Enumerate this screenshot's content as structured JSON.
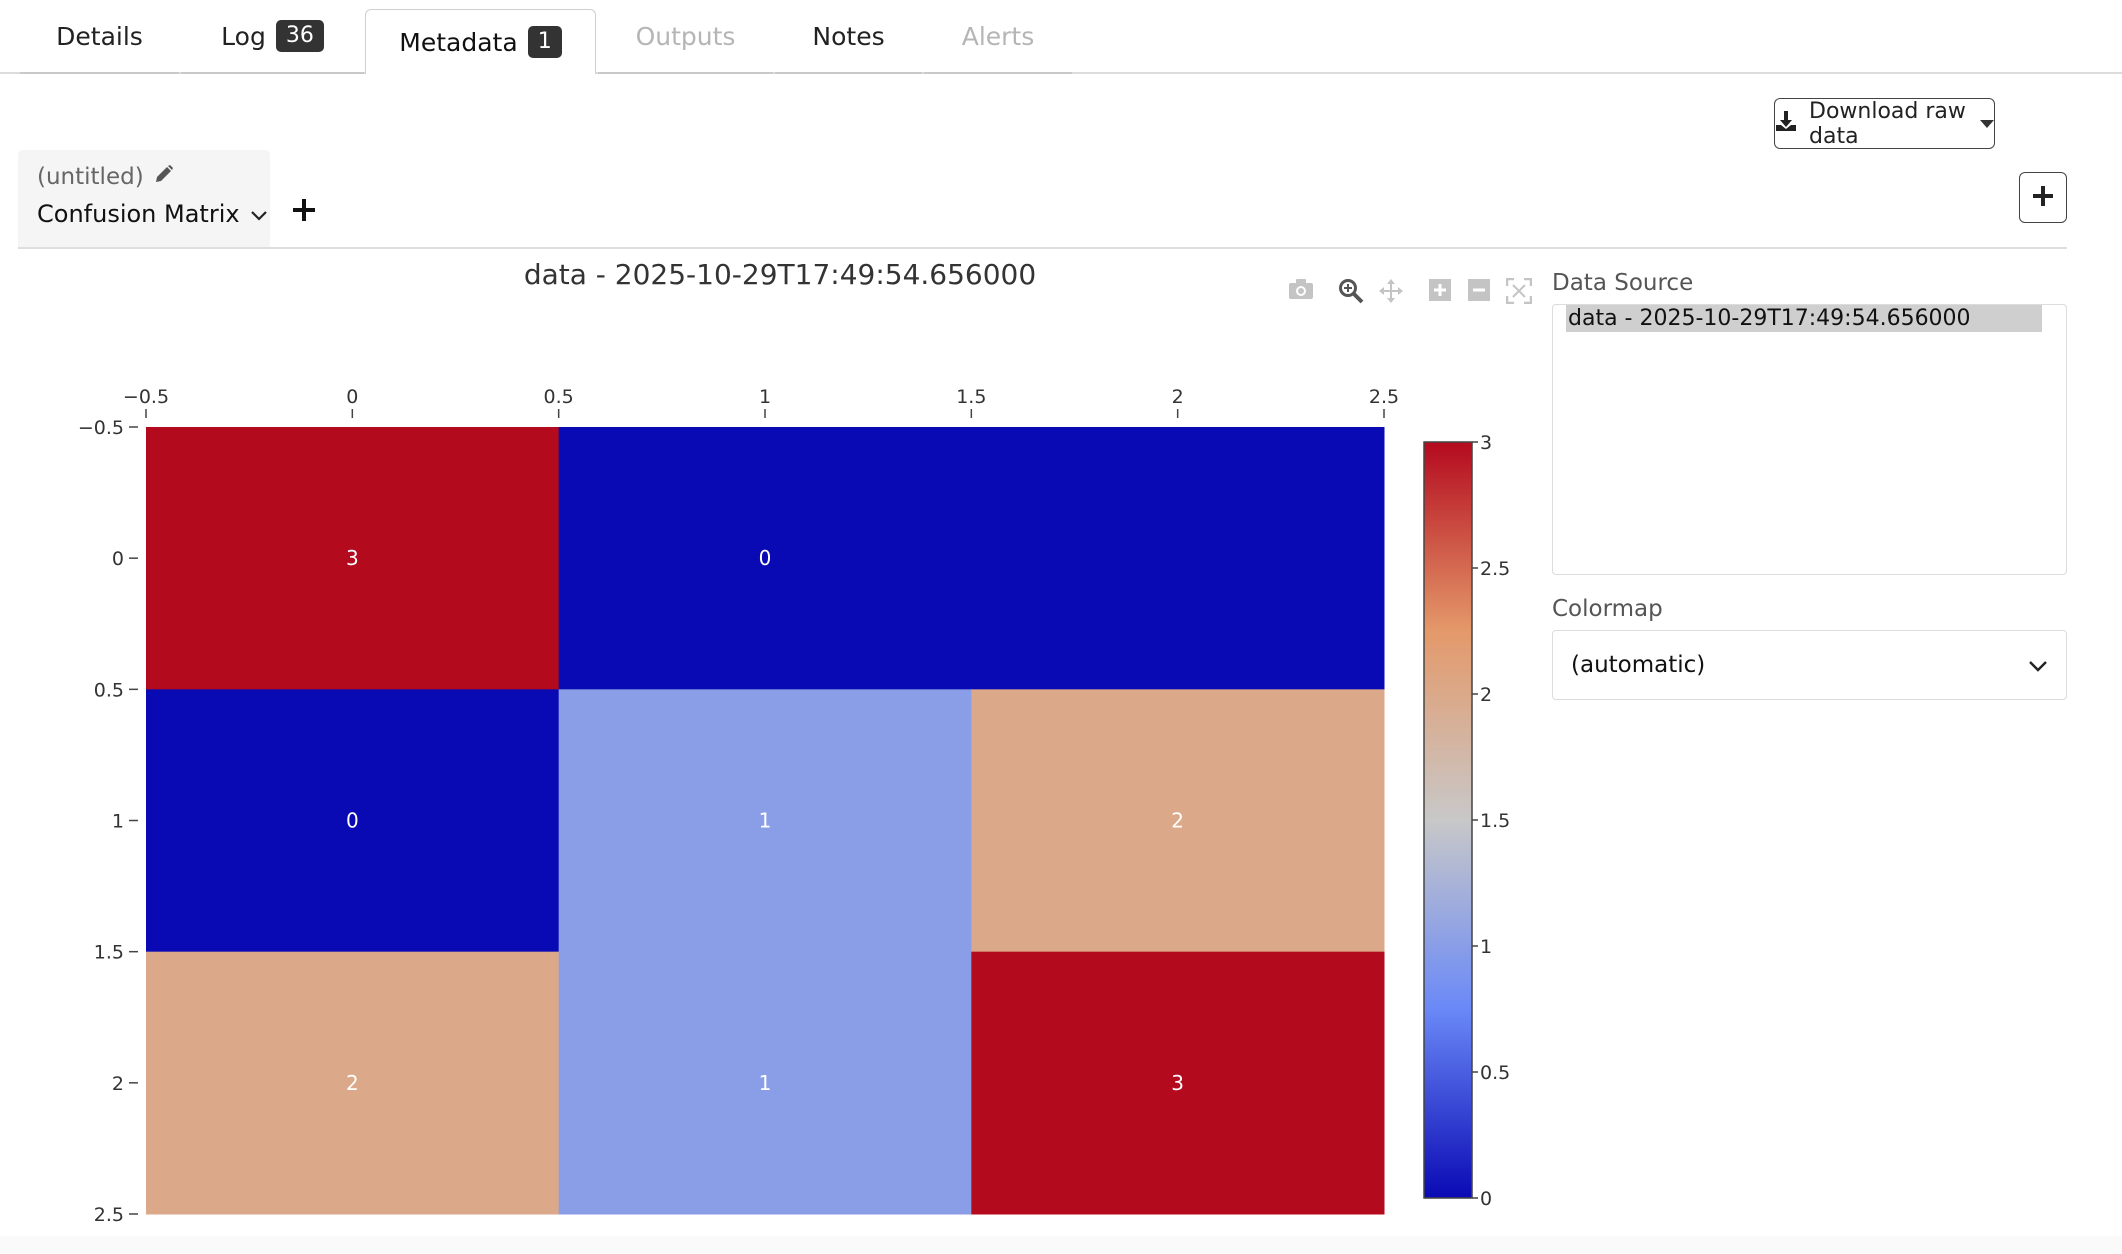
{
  "tabs": [
    {
      "label": "Details",
      "badge": null,
      "state": "normal"
    },
    {
      "label": "Log",
      "badge": "36",
      "state": "normal"
    },
    {
      "label": "Metadata",
      "badge": "1",
      "state": "active"
    },
    {
      "label": "Outputs",
      "badge": null,
      "state": "disabled"
    },
    {
      "label": "Notes",
      "badge": null,
      "state": "normal"
    },
    {
      "label": "Alerts",
      "badge": null,
      "state": "disabled"
    }
  ],
  "toolbar": {
    "download_label": "Download raw data",
    "download_icon": "download-icon",
    "add_icon": "plus-icon"
  },
  "panel": {
    "subtitle": "(untitled)",
    "title": "Confusion Matrix",
    "edit_icon": "pencil-icon",
    "add_panel_icon": "plus-icon"
  },
  "sidebar": {
    "data_source_label": "Data Source",
    "data_source_items": [
      "data - 2025-10-29T17:49:54.656000"
    ],
    "colormap_label": "Colormap",
    "colormap_value": "(automatic)"
  },
  "modebar_icons": [
    "camera-icon",
    "zoom-icon",
    "pan-icon",
    "zoom-in-icon",
    "zoom-out-icon",
    "autoscale-icon"
  ],
  "chart_data": {
    "type": "heatmap",
    "title": "data - 2025-10-29T17:49:54.656000",
    "x": [
      0,
      1,
      2
    ],
    "y": [
      0,
      1,
      2
    ],
    "z": [
      [
        3,
        0,
        0
      ],
      [
        0,
        1,
        2
      ],
      [
        2,
        1,
        3
      ]
    ],
    "cell_labels": [
      [
        "3",
        "0",
        ""
      ],
      [
        "0",
        "1",
        "2"
      ],
      [
        "2",
        "1",
        "3"
      ]
    ],
    "xlim": [
      -0.5,
      2.5
    ],
    "ylim": [
      -0.5,
      2.5
    ],
    "x_axis_position": "top",
    "y_reversed": true,
    "x_ticks": [
      "−0.5",
      "0",
      "0.5",
      "1",
      "1.5",
      "2",
      "2.5"
    ],
    "y_ticks": [
      "−0.5",
      "0",
      "0.5",
      "1",
      "1.5",
      "2",
      "2.5"
    ],
    "colorscale": [
      "#0a0ab4",
      "#6a89f7",
      "#c8c8c8",
      "#e4996a",
      "#b40a1e"
    ],
    "colorbar_range": [
      0,
      3
    ],
    "colorbar_ticks": [
      "0",
      "0.5",
      "1",
      "1.5",
      "2",
      "2.5",
      "3"
    ],
    "grid": false,
    "legend": "colorbar right"
  },
  "colors": {
    "cell_high": "#b10a1e",
    "cell_mid_high": "#e3996a",
    "cell_mid_low": "#6983f5",
    "cell_low": "#0a0ab4"
  }
}
